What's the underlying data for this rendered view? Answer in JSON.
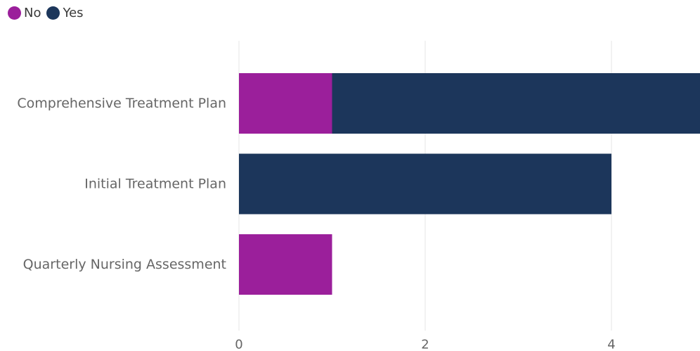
{
  "legend": {
    "items": [
      {
        "label": "No",
        "color": "#9b1f9b"
      },
      {
        "label": "Yes",
        "color": "#1c365b"
      }
    ]
  },
  "chart_data": {
    "type": "bar",
    "orientation": "horizontal",
    "stacked": true,
    "categories": [
      "Comprehensive Treatment Plan",
      "Initial Treatment Plan",
      "Quarterly Nursing Assessment"
    ],
    "series": [
      {
        "name": "No",
        "color": "#9b1f9b",
        "values": [
          1,
          0,
          1
        ]
      },
      {
        "name": "Yes",
        "color": "#1c365b",
        "values": [
          4,
          4,
          0
        ]
      }
    ],
    "xticks": [
      0,
      2,
      4
    ],
    "xlim": [
      0,
      5
    ],
    "grid": true,
    "legend_position": "top-left",
    "title": "",
    "xlabel": "",
    "ylabel": ""
  }
}
